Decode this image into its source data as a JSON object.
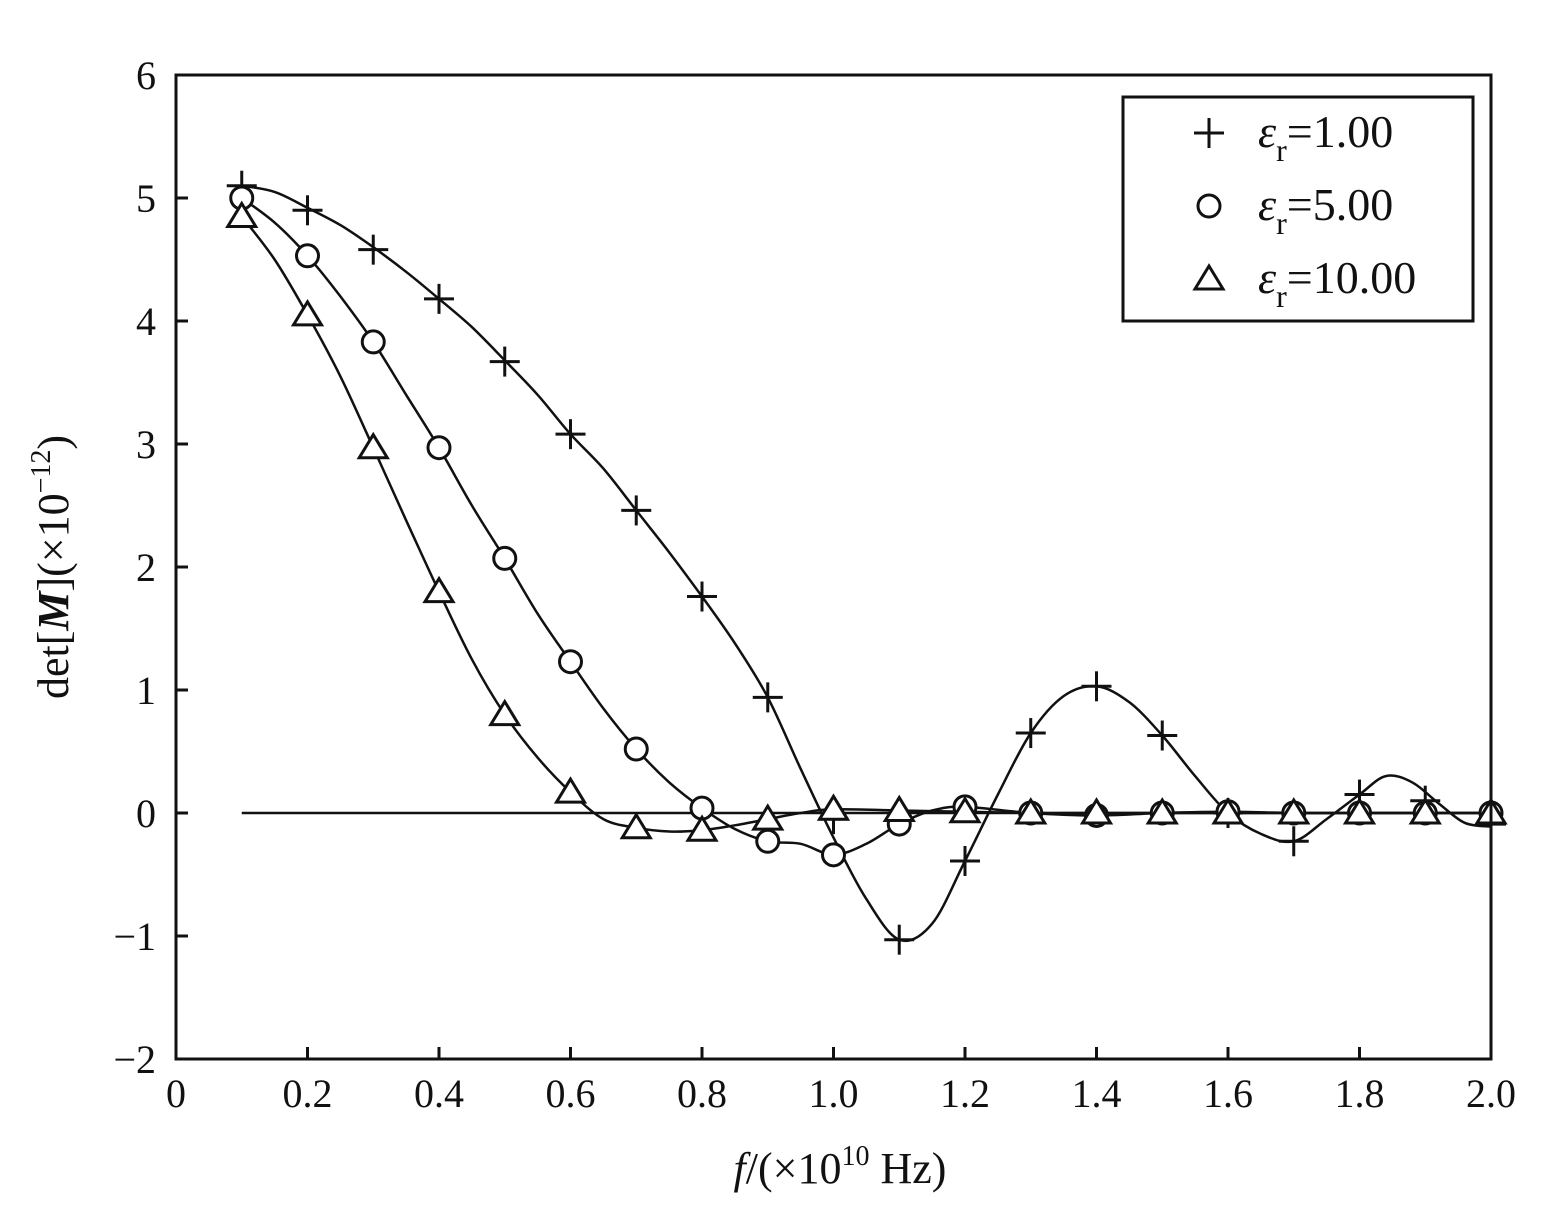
{
  "chart_data": {
    "type": "line",
    "xlabel": {
      "var": "f",
      "text": "/(×10",
      "sup": "10",
      "unit": " Hz)"
    },
    "ylabel": {
      "prefix": "det[",
      "var": "M",
      "suffix": "](×10",
      "sup": "−12",
      "close": ")"
    },
    "xlim": [
      0,
      2.0
    ],
    "ylim": [
      -2,
      6
    ],
    "xticks": [
      0,
      0.2,
      0.4,
      0.6,
      0.8,
      1.0,
      1.2,
      1.4,
      1.6,
      1.8,
      2.0
    ],
    "xtick_labels": [
      "0",
      "0.2",
      "0.4",
      "0.6",
      "0.8",
      "1.0",
      "1.2",
      "1.4",
      "1.6",
      "1.8",
      "2.0"
    ],
    "yticks": [
      -2,
      -1,
      0,
      1,
      2,
      3,
      4,
      5,
      6
    ],
    "ytick_labels": [
      "−2",
      "−1",
      "0",
      "1",
      "2",
      "3",
      "4",
      "5",
      "6"
    ],
    "legend_position": "top-right",
    "grid": false,
    "zero_line": true,
    "series": [
      {
        "name": "ε",
        "name_sub": "r",
        "name_value": "=1.00",
        "marker": "plus",
        "x": [
          0.1,
          0.2,
          0.3,
          0.4,
          0.5,
          0.6,
          0.7,
          0.8,
          0.9,
          1.0,
          1.1,
          1.2,
          1.3,
          1.4,
          1.5,
          1.6,
          1.7,
          1.8,
          1.9,
          2.0
        ],
        "y": [
          5.1,
          4.9,
          4.58,
          4.18,
          3.67,
          3.08,
          2.46,
          1.76,
          0.94,
          -0.05,
          -1.03,
          -0.39,
          0.65,
          1.03,
          0.63,
          0.0,
          -0.23,
          0.15,
          0.1,
          -0.09
        ],
        "curve": [
          [
            0.1,
            5.1
          ],
          [
            0.15,
            5.05
          ],
          [
            0.2,
            4.92
          ],
          [
            0.25,
            4.78
          ],
          [
            0.3,
            4.6
          ],
          [
            0.35,
            4.4
          ],
          [
            0.4,
            4.18
          ],
          [
            0.45,
            3.95
          ],
          [
            0.5,
            3.68
          ],
          [
            0.55,
            3.4
          ],
          [
            0.6,
            3.08
          ],
          [
            0.65,
            2.8
          ],
          [
            0.7,
            2.46
          ],
          [
            0.75,
            2.12
          ],
          [
            0.8,
            1.76
          ],
          [
            0.85,
            1.38
          ],
          [
            0.9,
            0.94
          ],
          [
            0.95,
            0.36
          ],
          [
            1.0,
            -0.2
          ],
          [
            1.05,
            -0.7
          ],
          [
            1.1,
            -1.03
          ],
          [
            1.15,
            -0.9
          ],
          [
            1.2,
            -0.39
          ],
          [
            1.25,
            0.15
          ],
          [
            1.3,
            0.65
          ],
          [
            1.35,
            0.95
          ],
          [
            1.4,
            1.03
          ],
          [
            1.45,
            0.9
          ],
          [
            1.5,
            0.63
          ],
          [
            1.55,
            0.3
          ],
          [
            1.6,
            0.0
          ],
          [
            1.65,
            -0.17
          ],
          [
            1.7,
            -0.23
          ],
          [
            1.75,
            -0.05
          ],
          [
            1.8,
            0.15
          ],
          [
            1.84,
            0.3
          ],
          [
            1.88,
            0.25
          ],
          [
            1.92,
            0.08
          ],
          [
            1.96,
            -0.08
          ],
          [
            2.0,
            -0.11
          ]
        ]
      },
      {
        "name": "ε",
        "name_sub": "r",
        "name_value": "=5.00",
        "marker": "circle",
        "x": [
          0.1,
          0.2,
          0.3,
          0.4,
          0.5,
          0.6,
          0.7,
          0.8,
          0.9,
          1.0,
          1.1,
          1.2,
          1.3,
          1.4,
          1.5,
          1.6,
          1.7,
          1.8,
          1.9,
          2.0
        ],
        "y": [
          5.0,
          4.53,
          3.83,
          2.97,
          2.07,
          1.23,
          0.52,
          0.04,
          -0.23,
          -0.34,
          -0.09,
          0.05,
          0.0,
          -0.02,
          0.0,
          0.01,
          0.0,
          0.0,
          0.0,
          0.0
        ],
        "curve": [
          [
            0.1,
            5.0
          ],
          [
            0.15,
            4.8
          ],
          [
            0.2,
            4.53
          ],
          [
            0.25,
            4.2
          ],
          [
            0.3,
            3.83
          ],
          [
            0.35,
            3.4
          ],
          [
            0.4,
            2.97
          ],
          [
            0.45,
            2.5
          ],
          [
            0.5,
            2.07
          ],
          [
            0.55,
            1.62
          ],
          [
            0.6,
            1.23
          ],
          [
            0.65,
            0.85
          ],
          [
            0.7,
            0.52
          ],
          [
            0.75,
            0.25
          ],
          [
            0.8,
            0.04
          ],
          [
            0.85,
            -0.13
          ],
          [
            0.9,
            -0.23
          ],
          [
            0.95,
            -0.25
          ],
          [
            1.0,
            -0.34
          ],
          [
            1.05,
            -0.25
          ],
          [
            1.1,
            -0.09
          ],
          [
            1.15,
            0.02
          ],
          [
            1.2,
            0.05
          ],
          [
            1.3,
            0.0
          ],
          [
            1.4,
            -0.02
          ],
          [
            1.5,
            0.0
          ],
          [
            1.6,
            0.01
          ],
          [
            1.7,
            0.0
          ],
          [
            1.8,
            0.0
          ],
          [
            1.9,
            0.0
          ],
          [
            2.0,
            0.0
          ]
        ]
      },
      {
        "name": "ε",
        "name_sub": "r",
        "name_value": "=10.00",
        "marker": "triangle",
        "x": [
          0.1,
          0.2,
          0.3,
          0.4,
          0.5,
          0.6,
          0.7,
          0.8,
          0.9,
          1.0,
          1.1,
          1.2,
          1.3,
          1.4,
          1.5,
          1.6,
          1.7,
          1.8,
          1.9,
          2.0
        ],
        "y": [
          4.85,
          4.05,
          2.97,
          1.8,
          0.8,
          0.17,
          -0.12,
          -0.14,
          -0.05,
          0.03,
          0.02,
          0.01,
          0.0,
          0.0,
          0.0,
          0.0,
          0.0,
          0.0,
          0.0,
          0.0
        ],
        "curve": [
          [
            0.1,
            4.85
          ],
          [
            0.15,
            4.5
          ],
          [
            0.2,
            4.05
          ],
          [
            0.25,
            3.55
          ],
          [
            0.3,
            2.97
          ],
          [
            0.35,
            2.38
          ],
          [
            0.4,
            1.8
          ],
          [
            0.45,
            1.25
          ],
          [
            0.5,
            0.8
          ],
          [
            0.55,
            0.45
          ],
          [
            0.6,
            0.17
          ],
          [
            0.65,
            -0.05
          ],
          [
            0.7,
            -0.12
          ],
          [
            0.75,
            -0.15
          ],
          [
            0.8,
            -0.14
          ],
          [
            0.85,
            -0.1
          ],
          [
            0.9,
            -0.05
          ],
          [
            0.95,
            0.0
          ],
          [
            1.0,
            0.03
          ],
          [
            1.1,
            0.02
          ],
          [
            1.2,
            0.01
          ],
          [
            1.3,
            0.0
          ],
          [
            1.4,
            0.0
          ],
          [
            1.5,
            0.0
          ],
          [
            1.6,
            0.0
          ],
          [
            1.7,
            0.0
          ],
          [
            1.8,
            0.0
          ],
          [
            1.9,
            0.0
          ],
          [
            2.0,
            0.0
          ]
        ]
      }
    ]
  }
}
